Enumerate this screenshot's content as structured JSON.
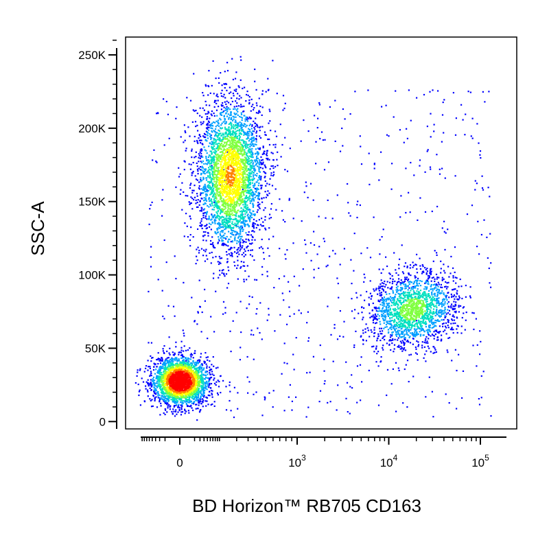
{
  "chart_data": {
    "type": "scatter",
    "plot_style": "flow cytometry density dot plot",
    "xlabel": "BD Horizon™ RB705 CD163",
    "ylabel": "SSC-A",
    "x_scale": "biexponential",
    "x_ticks": [
      {
        "value": 0,
        "base": "0",
        "exp": ""
      },
      {
        "value": 1000,
        "base": "10",
        "exp": "3"
      },
      {
        "value": 10000,
        "base": "10",
        "exp": "4"
      },
      {
        "value": 100000,
        "base": "10",
        "exp": "5"
      }
    ],
    "y_scale": "linear",
    "ylim": [
      -5000,
      262144
    ],
    "y_ticks": [
      {
        "value": 0,
        "label": "0"
      },
      {
        "value": 50000,
        "label": "50K"
      },
      {
        "value": 100000,
        "label": "100K"
      },
      {
        "value": 150000,
        "label": "150K"
      },
      {
        "value": 200000,
        "label": "200K"
      },
      {
        "value": 250000,
        "label": "250K"
      }
    ],
    "grid": false,
    "legend": "none",
    "colormap": [
      "#0000ff",
      "#00a0ff",
      "#00e0c0",
      "#80ff40",
      "#ffff00",
      "#ff8000",
      "#ff0000"
    ],
    "populations": [
      {
        "x_center": 0,
        "y_center": 28000,
        "y_spread": 8000,
        "peak_density": "high"
      },
      {
        "x_center": 150,
        "y_center": 168000,
        "y_spread": 26000,
        "peak_density": "medium"
      },
      {
        "x_center": 18000,
        "y_center": 77000,
        "y_spread": 12000,
        "peak_density": "low"
      }
    ]
  }
}
